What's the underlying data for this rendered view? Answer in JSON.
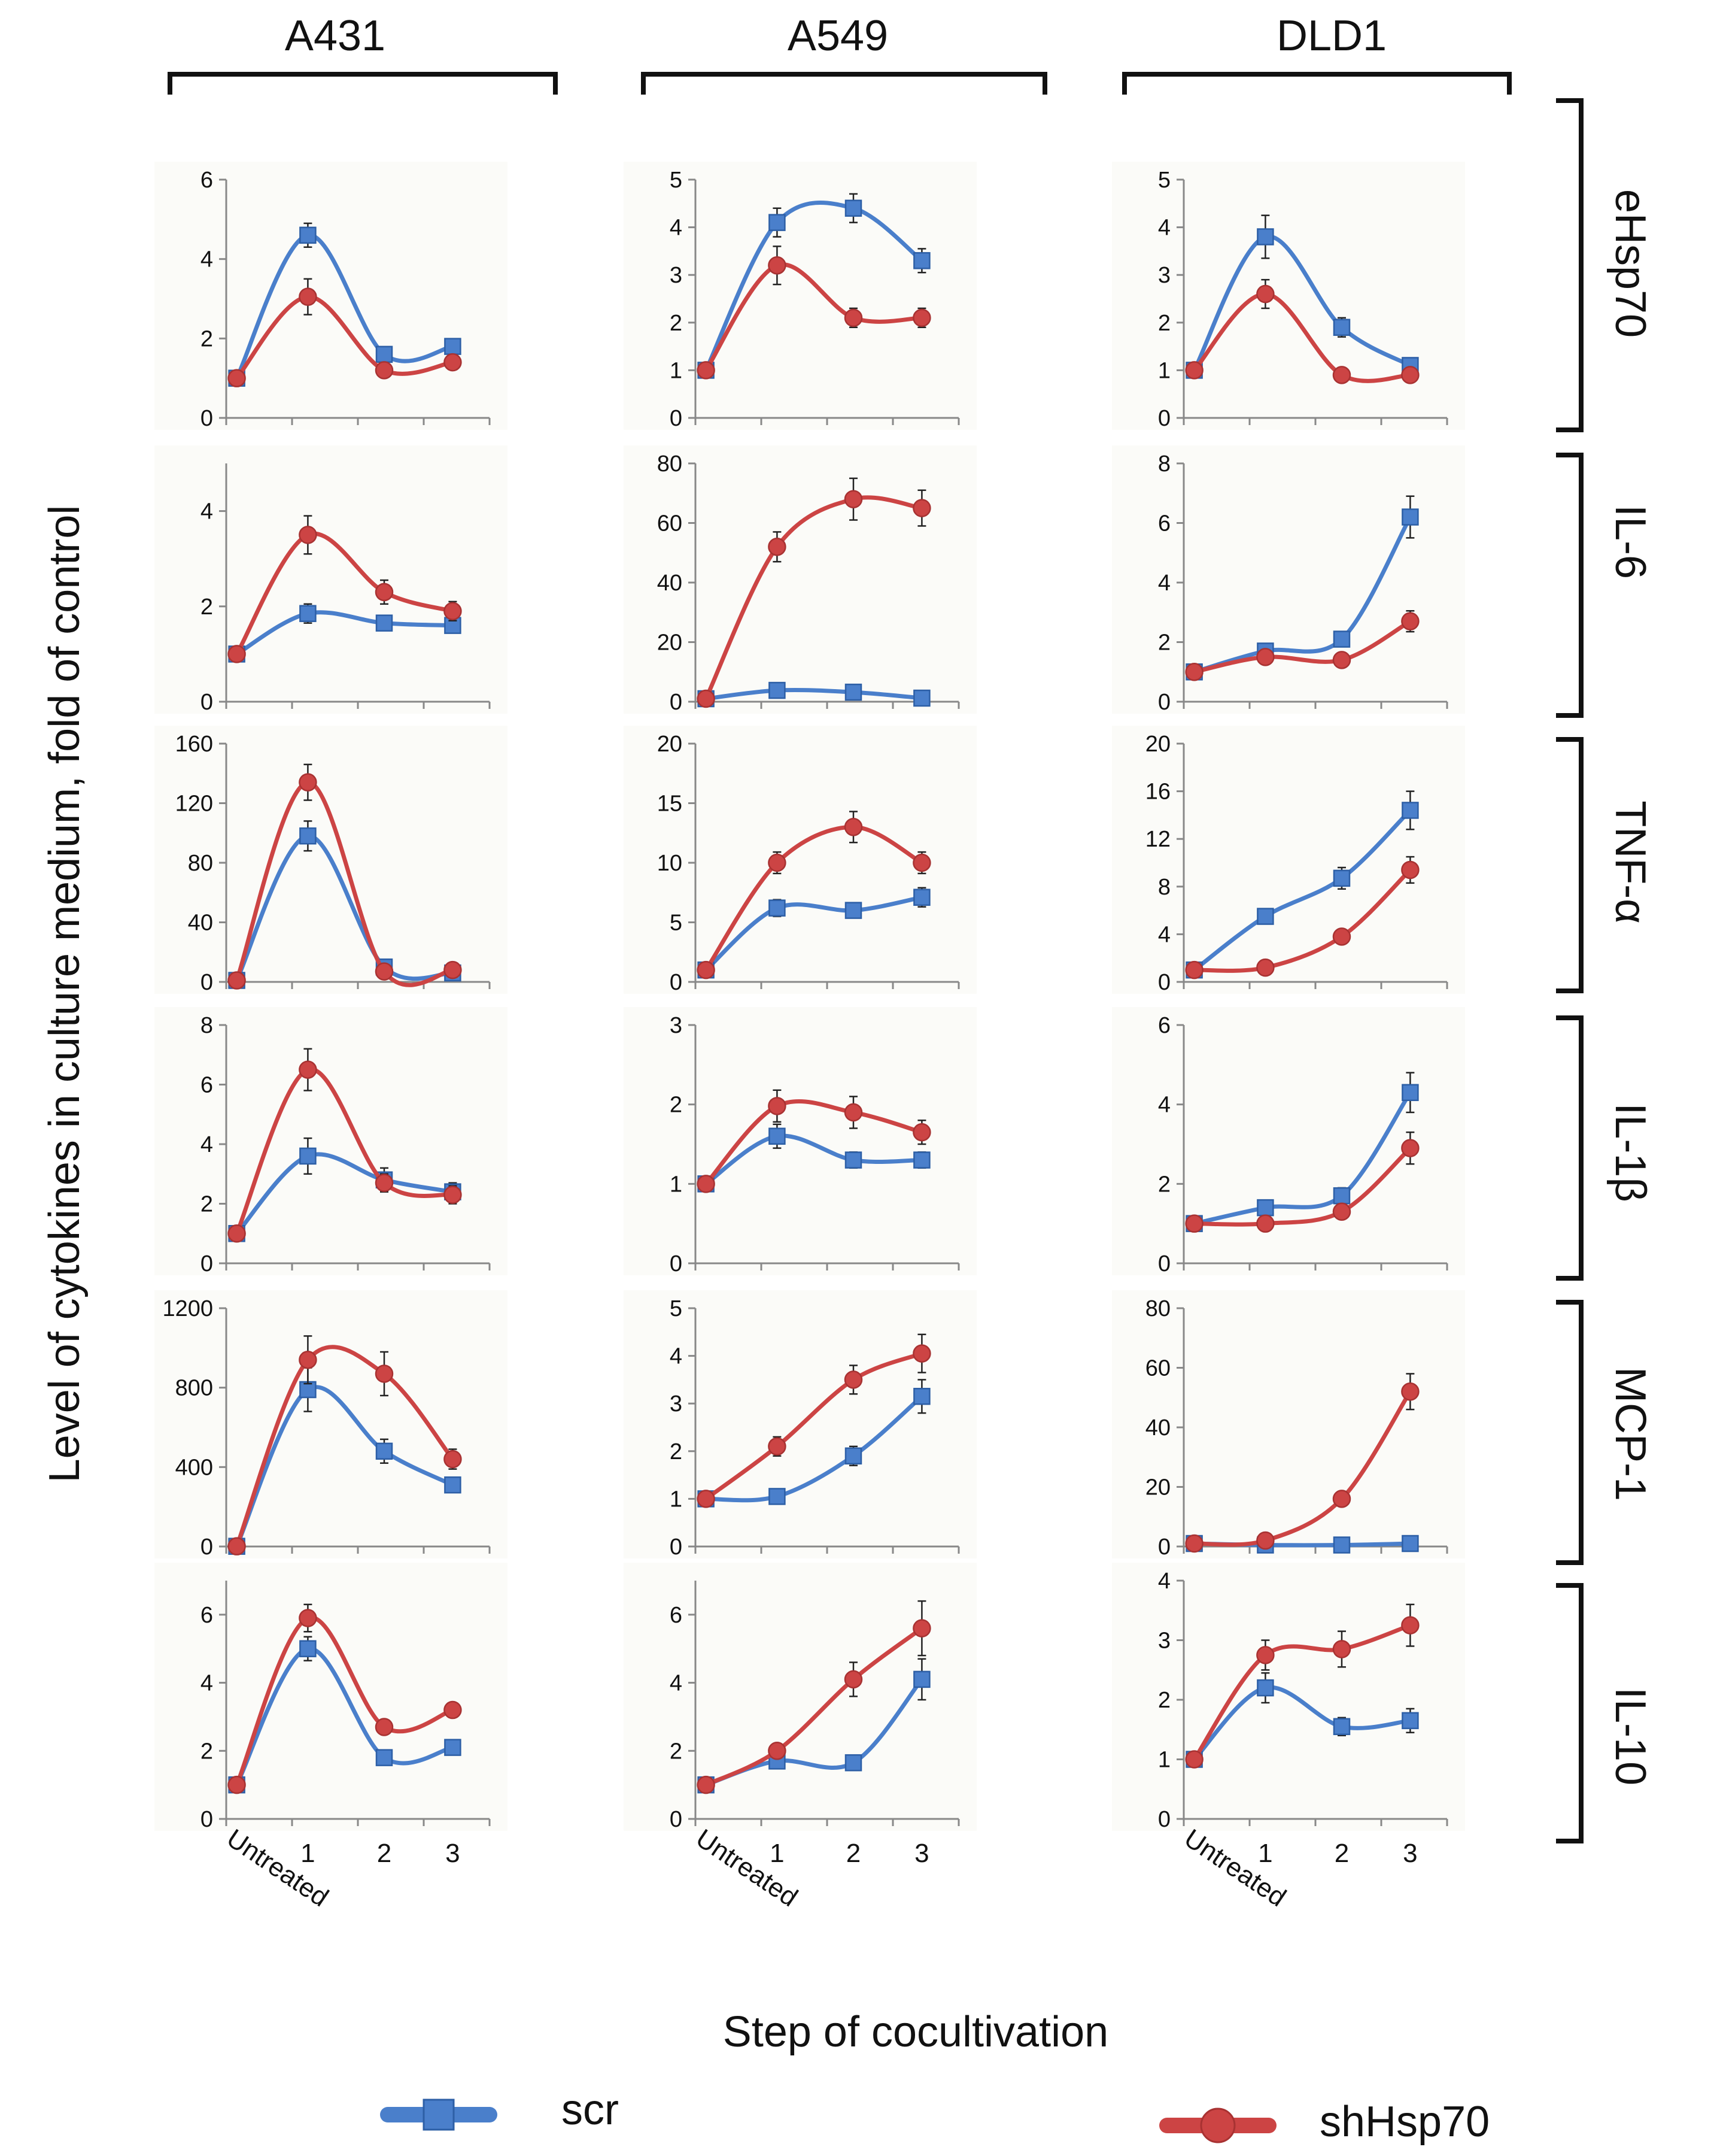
{
  "figure": {
    "y_axis_label": "Level of cytokines in culture medium, fold of control",
    "x_axis_label": "Step of cocultivation",
    "colors": {
      "scr": "#4a7fcb",
      "shHsp70": "#cc4444",
      "axis": "#888888",
      "bracket": "#111111",
      "panel_bg": "#fbfbf8"
    }
  },
  "legend": {
    "position": "bottom",
    "items": [
      {
        "series": "scr",
        "label": "scr",
        "marker": "square-marker-icon"
      },
      {
        "series": "shHsp70",
        "label": "shHsp70",
        "marker": "circle-marker-icon"
      }
    ]
  },
  "cell_lines": [
    "A431",
    "A549",
    "DLD1"
  ],
  "cytokines": [
    "eHsp70",
    "IL-6",
    "TNF-α",
    "IL-1β",
    "MCP-1",
    "IL-10"
  ],
  "chart_data": [
    {
      "type": "line",
      "cell_line": "A431",
      "cytokine": "eHsp70",
      "categories": [
        "Untreated",
        "1",
        "2",
        "3"
      ],
      "ylim": [
        0,
        6
      ],
      "yticks": [
        0,
        2,
        4,
        6
      ],
      "smooth": true,
      "error_bars": true,
      "series": [
        {
          "name": "scr",
          "values": [
            1,
            4.6,
            1.6,
            1.8
          ],
          "errors": [
            0.05,
            0.3,
            0.1,
            0.1
          ]
        },
        {
          "name": "shHsp70",
          "values": [
            1,
            3.05,
            1.2,
            1.4
          ],
          "errors": [
            0.05,
            0.45,
            0.1,
            0.1
          ]
        }
      ]
    },
    {
      "type": "line",
      "cell_line": "A549",
      "cytokine": "eHsp70",
      "categories": [
        "Untreated",
        "1",
        "2",
        "3"
      ],
      "ylim": [
        0,
        5
      ],
      "yticks": [
        0,
        1,
        2,
        3,
        4,
        5
      ],
      "smooth": true,
      "error_bars": true,
      "series": [
        {
          "name": "scr",
          "values": [
            1,
            4.1,
            4.4,
            3.3
          ],
          "errors": [
            0.05,
            0.3,
            0.3,
            0.25
          ]
        },
        {
          "name": "shHsp70",
          "values": [
            1,
            3.2,
            2.1,
            2.1
          ],
          "errors": [
            0.05,
            0.4,
            0.2,
            0.2
          ]
        }
      ]
    },
    {
      "type": "line",
      "cell_line": "DLD1",
      "cytokine": "eHsp70",
      "categories": [
        "Untreated",
        "1",
        "2",
        "3"
      ],
      "ylim": [
        0,
        5
      ],
      "yticks": [
        0,
        1,
        2,
        3,
        4,
        5
      ],
      "smooth": true,
      "error_bars": true,
      "series": [
        {
          "name": "scr",
          "values": [
            1,
            3.8,
            1.9,
            1.1
          ],
          "errors": [
            0.05,
            0.45,
            0.2,
            0.1
          ]
        },
        {
          "name": "shHsp70",
          "values": [
            1,
            2.6,
            0.9,
            0.9
          ],
          "errors": [
            0.05,
            0.3,
            0.05,
            0.05
          ]
        }
      ]
    },
    {
      "type": "line",
      "cell_line": "A431",
      "cytokine": "IL-6",
      "categories": [
        "Untreated",
        "1",
        "2",
        "3"
      ],
      "ylim": [
        0,
        5
      ],
      "yticks": [
        0,
        2,
        4
      ],
      "smooth": true,
      "error_bars": true,
      "series": [
        {
          "name": "scr",
          "values": [
            1,
            1.85,
            1.65,
            1.6
          ],
          "errors": [
            0.05,
            0.2,
            0.15,
            0.15
          ]
        },
        {
          "name": "shHsp70",
          "values": [
            1,
            3.5,
            2.3,
            1.9
          ],
          "errors": [
            0.05,
            0.4,
            0.25,
            0.2
          ]
        }
      ]
    },
    {
      "type": "line",
      "cell_line": "A549",
      "cytokine": "IL-6",
      "categories": [
        "Untreated",
        "1",
        "2",
        "3"
      ],
      "ylim": [
        0,
        80
      ],
      "yticks": [
        0,
        20,
        40,
        60,
        80
      ],
      "smooth": true,
      "error_bars": true,
      "series": [
        {
          "name": "scr",
          "values": [
            1,
            3.8,
            3.2,
            1.2
          ],
          "errors": [
            0.2,
            0.5,
            0.5,
            0.3
          ]
        },
        {
          "name": "shHsp70",
          "values": [
            1,
            52,
            68,
            65
          ],
          "errors": [
            0.2,
            5,
            7,
            6
          ]
        }
      ]
    },
    {
      "type": "line",
      "cell_line": "DLD1",
      "cytokine": "IL-6",
      "categories": [
        "Untreated",
        "1",
        "2",
        "3"
      ],
      "ylim": [
        0,
        8
      ],
      "yticks": [
        0,
        2,
        4,
        6,
        8
      ],
      "smooth": true,
      "error_bars": true,
      "series": [
        {
          "name": "scr",
          "values": [
            1,
            1.7,
            2.1,
            6.2
          ],
          "errors": [
            0.05,
            0.1,
            0.15,
            0.7
          ]
        },
        {
          "name": "shHsp70",
          "values": [
            1,
            1.5,
            1.4,
            2.7
          ],
          "errors": [
            0.05,
            0.1,
            0.1,
            0.35
          ]
        }
      ]
    },
    {
      "type": "line",
      "cell_line": "A431",
      "cytokine": "TNF-α",
      "categories": [
        "Untreated",
        "1",
        "2",
        "3"
      ],
      "ylim": [
        0,
        160
      ],
      "yticks": [
        0,
        40,
        80,
        120,
        160
      ],
      "smooth": true,
      "error_bars": true,
      "series": [
        {
          "name": "scr",
          "values": [
            1,
            98,
            10,
            6
          ],
          "errors": [
            0.5,
            10,
            2,
            1
          ]
        },
        {
          "name": "shHsp70",
          "values": [
            1,
            134,
            7,
            8
          ],
          "errors": [
            0.5,
            12,
            1.5,
            1.5
          ]
        }
      ]
    },
    {
      "type": "line",
      "cell_line": "A549",
      "cytokine": "TNF-α",
      "categories": [
        "Untreated",
        "1",
        "2",
        "3"
      ],
      "ylim": [
        0,
        20
      ],
      "yticks": [
        0,
        5,
        10,
        15,
        20
      ],
      "smooth": true,
      "error_bars": true,
      "series": [
        {
          "name": "scr",
          "values": [
            1,
            6.2,
            6,
            7.1
          ],
          "errors": [
            0.1,
            0.7,
            0.6,
            0.8
          ]
        },
        {
          "name": "shHsp70",
          "values": [
            1,
            10,
            13,
            10
          ],
          "errors": [
            0.1,
            0.9,
            1.3,
            0.9
          ]
        }
      ]
    },
    {
      "type": "line",
      "cell_line": "DLD1",
      "cytokine": "TNF-α",
      "categories": [
        "Untreated",
        "1",
        "2",
        "3"
      ],
      "ylim": [
        0,
        20
      ],
      "yticks": [
        0,
        4,
        8,
        12,
        16,
        20
      ],
      "smooth": true,
      "error_bars": true,
      "series": [
        {
          "name": "scr",
          "values": [
            1,
            5.5,
            8.7,
            14.4
          ],
          "errors": [
            0.1,
            0.5,
            0.9,
            1.6
          ]
        },
        {
          "name": "shHsp70",
          "values": [
            1,
            1.2,
            3.8,
            9.4
          ],
          "errors": [
            0.1,
            0.1,
            0.35,
            1.1
          ]
        }
      ]
    },
    {
      "type": "line",
      "cell_line": "A431",
      "cytokine": "IL-1β",
      "categories": [
        "Untreated",
        "1",
        "2",
        "3"
      ],
      "ylim": [
        0,
        8
      ],
      "yticks": [
        0,
        2,
        4,
        6,
        8
      ],
      "smooth": true,
      "error_bars": true,
      "series": [
        {
          "name": "scr",
          "values": [
            1,
            3.6,
            2.8,
            2.4
          ],
          "errors": [
            0.05,
            0.6,
            0.4,
            0.3
          ]
        },
        {
          "name": "shHsp70",
          "values": [
            1,
            6.5,
            2.7,
            2.3
          ],
          "errors": [
            0.05,
            0.7,
            0.3,
            0.3
          ]
        }
      ]
    },
    {
      "type": "line",
      "cell_line": "A549",
      "cytokine": "IL-1β",
      "categories": [
        "Untreated",
        "1",
        "2",
        "3"
      ],
      "ylim": [
        0,
        3
      ],
      "yticks": [
        0,
        1,
        2,
        3
      ],
      "smooth": true,
      "error_bars": true,
      "series": [
        {
          "name": "scr",
          "values": [
            1,
            1.6,
            1.3,
            1.3
          ],
          "errors": [
            0.03,
            0.15,
            0.1,
            0.1
          ]
        },
        {
          "name": "shHsp70",
          "values": [
            1,
            1.98,
            1.9,
            1.65
          ],
          "errors": [
            0.03,
            0.2,
            0.2,
            0.15
          ]
        }
      ]
    },
    {
      "type": "line",
      "cell_line": "DLD1",
      "cytokine": "IL-1β",
      "categories": [
        "Untreated",
        "1",
        "2",
        "3"
      ],
      "ylim": [
        0,
        6
      ],
      "yticks": [
        0,
        2,
        4,
        6
      ],
      "smooth": true,
      "error_bars": true,
      "series": [
        {
          "name": "scr",
          "values": [
            1,
            1.4,
            1.7,
            4.3
          ],
          "errors": [
            0.05,
            0.1,
            0.2,
            0.5
          ]
        },
        {
          "name": "shHsp70",
          "values": [
            1,
            1,
            1.3,
            2.9
          ],
          "errors": [
            0.05,
            0.05,
            0.1,
            0.4
          ]
        }
      ]
    },
    {
      "type": "line",
      "cell_line": "A431",
      "cytokine": "MCP-1",
      "categories": [
        "Untreated",
        "1",
        "2",
        "3"
      ],
      "ylim": [
        0,
        1200
      ],
      "yticks": [
        0,
        400,
        800,
        1200
      ],
      "smooth": true,
      "error_bars": true,
      "series": [
        {
          "name": "scr",
          "values": [
            1,
            790,
            480,
            310
          ],
          "errors": [
            2,
            110,
            60,
            35
          ]
        },
        {
          "name": "shHsp70",
          "values": [
            1,
            940,
            870,
            440
          ],
          "errors": [
            2,
            120,
            110,
            50
          ]
        }
      ]
    },
    {
      "type": "line",
      "cell_line": "A549",
      "cytokine": "MCP-1",
      "categories": [
        "Untreated",
        "1",
        "2",
        "3"
      ],
      "ylim": [
        0,
        5
      ],
      "yticks": [
        0,
        1,
        2,
        3,
        4,
        5
      ],
      "smooth": true,
      "error_bars": true,
      "series": [
        {
          "name": "scr",
          "values": [
            1,
            1.05,
            1.9,
            3.15
          ],
          "errors": [
            0.05,
            0.05,
            0.2,
            0.35
          ]
        },
        {
          "name": "shHsp70",
          "values": [
            1,
            2.1,
            3.5,
            4.05
          ],
          "errors": [
            0.05,
            0.2,
            0.3,
            0.4
          ]
        }
      ]
    },
    {
      "type": "line",
      "cell_line": "DLD1",
      "cytokine": "MCP-1",
      "categories": [
        "Untreated",
        "1",
        "2",
        "3"
      ],
      "ylim": [
        0,
        80
      ],
      "yticks": [
        0,
        20,
        40,
        60,
        80
      ],
      "smooth": true,
      "error_bars": true,
      "series": [
        {
          "name": "scr",
          "values": [
            1,
            0.5,
            0.5,
            1
          ],
          "errors": [
            0.2,
            0.2,
            0.2,
            0.2
          ]
        },
        {
          "name": "shHsp70",
          "values": [
            1,
            2,
            16,
            52
          ],
          "errors": [
            0.2,
            0.3,
            1.5,
            6
          ]
        }
      ]
    },
    {
      "type": "line",
      "cell_line": "A431",
      "cytokine": "IL-10",
      "categories": [
        "Untreated",
        "1",
        "2",
        "3"
      ],
      "ylim": [
        0,
        7
      ],
      "yticks": [
        0,
        2,
        4,
        6
      ],
      "smooth": true,
      "error_bars": true,
      "series": [
        {
          "name": "scr",
          "values": [
            1,
            5,
            1.8,
            2.1
          ],
          "errors": [
            0.05,
            0.35,
            0.1,
            0.1
          ]
        },
        {
          "name": "shHsp70",
          "values": [
            1,
            5.9,
            2.7,
            3.2
          ],
          "errors": [
            0.05,
            0.4,
            0.1,
            0.1
          ]
        }
      ]
    },
    {
      "type": "line",
      "cell_line": "A549",
      "cytokine": "IL-10",
      "categories": [
        "Untreated",
        "1",
        "2",
        "3"
      ],
      "ylim": [
        0,
        7
      ],
      "yticks": [
        0,
        2,
        4,
        6
      ],
      "smooth": true,
      "error_bars": true,
      "series": [
        {
          "name": "scr",
          "values": [
            1,
            1.7,
            1.65,
            4.1
          ],
          "errors": [
            0.05,
            0.2,
            0.15,
            0.6
          ]
        },
        {
          "name": "shHsp70",
          "values": [
            1,
            2,
            4.1,
            5.6
          ],
          "errors": [
            0.05,
            0.2,
            0.5,
            0.8
          ]
        }
      ]
    },
    {
      "type": "line",
      "cell_line": "DLD1",
      "cytokine": "IL-10",
      "categories": [
        "Untreated",
        "1",
        "2",
        "3"
      ],
      "ylim": [
        0,
        4
      ],
      "yticks": [
        0,
        1,
        2,
        3,
        4
      ],
      "smooth": true,
      "error_bars": true,
      "series": [
        {
          "name": "scr",
          "values": [
            1,
            2.2,
            1.55,
            1.65
          ],
          "errors": [
            0.05,
            0.25,
            0.15,
            0.2
          ]
        },
        {
          "name": "shHsp70",
          "values": [
            1,
            2.75,
            2.85,
            3.25
          ],
          "errors": [
            0.05,
            0.25,
            0.3,
            0.35
          ]
        }
      ]
    }
  ]
}
